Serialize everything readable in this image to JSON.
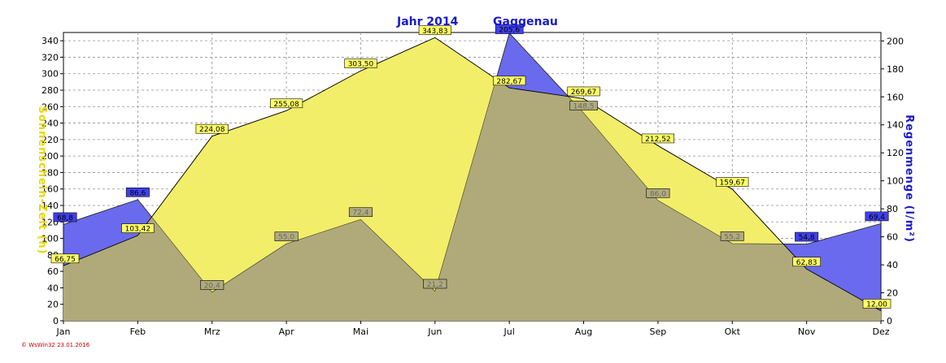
{
  "header": {
    "title_year": "Jahr  2014",
    "title_place": "Gaggenau"
  },
  "footer": {
    "credit": "© WsWin32  23.01.2016"
  },
  "colors": {
    "sunshine_fill": "#f2ee6a",
    "rain_fill": "#6a6aee",
    "overlap_fill": "#b0aa7a",
    "sunshine_label_bg": "#ffff66",
    "rain_label_bg": "#4040ee",
    "overlap_label_bg": "#b0aa80",
    "title_color": "#1a1acc"
  },
  "chart_data": {
    "type": "area",
    "categories": [
      "Jan",
      "Feb",
      "Mrz",
      "Apr",
      "Mai",
      "Jun",
      "Jul",
      "Aug",
      "Sep",
      "Okt",
      "Nov",
      "Dez"
    ],
    "ylabel_left": "Sonnenschein-Zeit  (h)",
    "ylabel_right": "Regenmenge  (l/m²)",
    "ylim_left": [
      0,
      350
    ],
    "ylim_right": [
      0,
      206
    ],
    "yticks_left": [
      "0",
      "20",
      "40",
      "60",
      "80",
      "100",
      "120",
      "140",
      "160",
      "180",
      "200",
      "220",
      "240",
      "260",
      "280",
      "300",
      "320",
      "340"
    ],
    "yticks_right": [
      "0",
      "20",
      "40",
      "60",
      "80",
      "100",
      "120",
      "140",
      "160",
      "180",
      "200"
    ],
    "grid": true,
    "series": [
      {
        "name": "Sonnenschein-Zeit",
        "axis": "left",
        "values": [
          66.75,
          103.42,
          224.08,
          255.08,
          303.5,
          343.83,
          282.67,
          269.67,
          212.52,
          159.67,
          62.83,
          12.0
        ],
        "labels": [
          "66,75",
          "103,42",
          "224,08",
          "255,08",
          "303,50",
          "343,83",
          "282,67",
          "269,67",
          "212,52",
          "159,67",
          "62,83",
          "12,00"
        ]
      },
      {
        "name": "Regenmenge",
        "axis": "right",
        "values": [
          68.8,
          86.6,
          20.4,
          55.0,
          72.4,
          21.2,
          205.6,
          148.5,
          86.0,
          55.2,
          54.8,
          69.4
        ],
        "labels": [
          "68,8",
          "86,6",
          "20,4",
          "55,0",
          "72,4",
          "21,2",
          "205,6",
          "148,5",
          "86,0",
          "55,2",
          "54,8",
          "69,4"
        ]
      }
    ]
  }
}
